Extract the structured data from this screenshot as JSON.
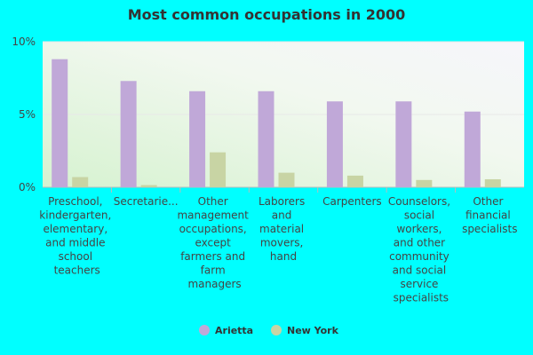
{
  "chart_data": {
    "type": "bar",
    "title": "Most common occupations in 2000",
    "categories": [
      "Preschool, kindergarten, elementary, and middle school teachers",
      "Secretarie...",
      "Other management occupations, except farmers and farm managers",
      "Laborers and material movers, hand",
      "Carpenters",
      "Counselors, social workers, and other community and social service specialists",
      "Other financial specialists"
    ],
    "series": [
      {
        "name": "Arietta",
        "color": "#c0a8d8",
        "values": [
          8.8,
          7.3,
          6.6,
          6.6,
          5.9,
          5.9,
          5.2
        ]
      },
      {
        "name": "New York",
        "color": "#c8d4a4",
        "values": [
          0.7,
          0.15,
          2.4,
          1.0,
          0.8,
          0.5,
          0.55
        ]
      }
    ],
    "ylim": [
      0,
      10
    ],
    "yticks": [
      {
        "value": 0,
        "label": "0%"
      },
      {
        "value": 5,
        "label": "5%"
      },
      {
        "value": 10,
        "label": "10%"
      }
    ],
    "grid": true,
    "legend": "bottom"
  }
}
